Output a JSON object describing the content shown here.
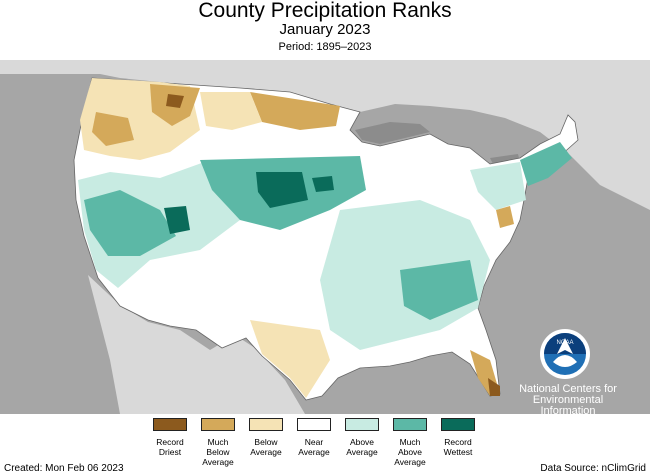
{
  "header": {
    "title": "County Precipitation Ranks",
    "subtitle": "January 2023",
    "period": "Period: 1895–2023"
  },
  "map": {
    "background_color": "#a6a6a6",
    "land_color": "#d9d9d9",
    "water_color": "#8c8c8c",
    "logo_name": "noaa-logo-icon",
    "ncei_label": "National Centers for\nEnvironmental\nInformation"
  },
  "legend": {
    "items": [
      {
        "label": "Record\nDriest",
        "color": "#8c5a1e"
      },
      {
        "label": "Much\nBelow\nAverage",
        "color": "#d4a95a"
      },
      {
        "label": "Below\nAverage",
        "color": "#f5e3b5"
      },
      {
        "label": "Near\nAverage",
        "color": "#ffffff"
      },
      {
        "label": "Above\nAverage",
        "color": "#c8ebe2"
      },
      {
        "label": "Much\nAbove\nAverage",
        "color": "#5cb8a6"
      },
      {
        "label": "Record\nWettest",
        "color": "#0a6b5a"
      }
    ]
  },
  "footer": {
    "created": "Created: Mon Feb 06 2023",
    "source": "Data Source: nClimGrid"
  }
}
